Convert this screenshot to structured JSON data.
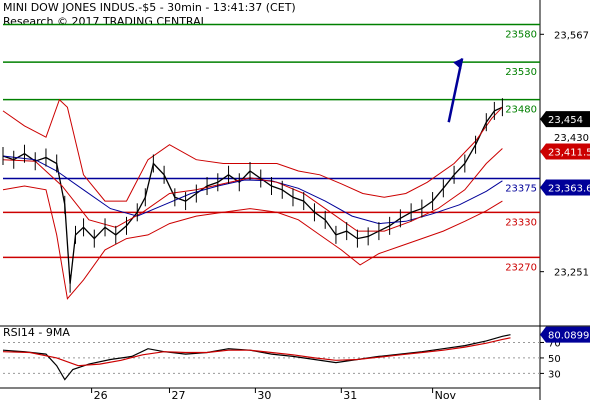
{
  "header": {
    "line1": "MINI DOW JONES INDUS.-$5 - 30min - 13:41:37 (CET)",
    "line2": "Research © 2017 TRADING CENTRAL"
  },
  "chart_data": {
    "type": "candlestick",
    "price_panel": {
      "y_range": [
        23180,
        23610
      ],
      "y_ticks": [
        {
          "value": 23567,
          "label": "23,567"
        },
        {
          "value": 23251,
          "label": "23,251"
        }
      ],
      "levels": [
        {
          "value": 23580,
          "label": "23580",
          "color": "#008000"
        },
        {
          "value": 23530,
          "label": "23530",
          "color": "#008000"
        },
        {
          "value": 23480,
          "label": "23480",
          "color": "#008000"
        },
        {
          "value": 23375,
          "label": "23375",
          "color": "#000099"
        },
        {
          "value": 23330,
          "label": "23330",
          "color": "#cc0000"
        },
        {
          "value": 23270,
          "label": "23270",
          "color": "#cc0000"
        }
      ],
      "price_tags": [
        {
          "value": 23454,
          "label": "23,454",
          "bg": "#000000",
          "fg": "#ffffff"
        },
        {
          "value": 23411,
          "label": "23,411.5",
          "bg": "#cc0000",
          "fg": "#ffffff"
        },
        {
          "value": 23363,
          "label": "23,363.6",
          "bg": "#000099",
          "fg": "#ffffff"
        }
      ],
      "hidden_tick": {
        "value": 23430,
        "label": "23,430"
      },
      "arrow": {
        "from": [
          23450,
          0.83
        ],
        "to": [
          23535,
          0.855
        ]
      },
      "series": [
        {
          "name": "price",
          "color": "#000000",
          "points": [
            [
              0,
              23405
            ],
            [
              0.02,
              23400
            ],
            [
              0.04,
              23408
            ],
            [
              0.06,
              23398
            ],
            [
              0.08,
              23403
            ],
            [
              0.1,
              23395
            ],
            [
              0.115,
              23340
            ],
            [
              0.125,
              23235
            ],
            [
              0.135,
              23300
            ],
            [
              0.15,
              23310
            ],
            [
              0.17,
              23295
            ],
            [
              0.19,
              23310
            ],
            [
              0.21,
              23300
            ],
            [
              0.23,
              23312
            ],
            [
              0.25,
              23330
            ],
            [
              0.265,
              23350
            ],
            [
              0.28,
              23395
            ],
            [
              0.3,
              23380
            ],
            [
              0.32,
              23350
            ],
            [
              0.34,
              23345
            ],
            [
              0.36,
              23355
            ],
            [
              0.38,
              23365
            ],
            [
              0.4,
              23370
            ],
            [
              0.42,
              23380
            ],
            [
              0.44,
              23370
            ],
            [
              0.46,
              23385
            ],
            [
              0.48,
              23375
            ],
            [
              0.5,
              23365
            ],
            [
              0.52,
              23360
            ],
            [
              0.54,
              23350
            ],
            [
              0.56,
              23345
            ],
            [
              0.58,
              23330
            ],
            [
              0.6,
              23320
            ],
            [
              0.62,
              23300
            ],
            [
              0.64,
              23305
            ],
            [
              0.66,
              23295
            ],
            [
              0.68,
              23298
            ],
            [
              0.7,
              23305
            ],
            [
              0.72,
              23312
            ],
            [
              0.74,
              23322
            ],
            [
              0.76,
              23330
            ],
            [
              0.78,
              23335
            ],
            [
              0.8,
              23345
            ],
            [
              0.82,
              23362
            ],
            [
              0.84,
              23380
            ],
            [
              0.86,
              23395
            ],
            [
              0.88,
              23420
            ],
            [
              0.9,
              23450
            ],
            [
              0.915,
              23465
            ],
            [
              0.93,
              23470
            ]
          ]
        },
        {
          "name": "ma-fast",
          "color": "#000099",
          "points": [
            [
              0,
              23405
            ],
            [
              0.06,
              23400
            ],
            [
              0.1,
              23385
            ],
            [
              0.15,
              23360
            ],
            [
              0.2,
              23335
            ],
            [
              0.25,
              23325
            ],
            [
              0.3,
              23340
            ],
            [
              0.35,
              23355
            ],
            [
              0.4,
              23365
            ],
            [
              0.45,
              23373
            ],
            [
              0.5,
              23372
            ],
            [
              0.55,
              23362
            ],
            [
              0.6,
              23345
            ],
            [
              0.65,
              23325
            ],
            [
              0.7,
              23315
            ],
            [
              0.75,
              23318
            ],
            [
              0.8,
              23328
            ],
            [
              0.85,
              23340
            ],
            [
              0.9,
              23358
            ],
            [
              0.93,
              23372
            ]
          ]
        },
        {
          "name": "ma-slow",
          "color": "#cc0000",
          "points": [
            [
              0,
              23400
            ],
            [
              0.06,
              23398
            ],
            [
              0.11,
              23365
            ],
            [
              0.16,
              23320
            ],
            [
              0.21,
              23310
            ],
            [
              0.26,
              23330
            ],
            [
              0.31,
              23355
            ],
            [
              0.36,
              23360
            ],
            [
              0.41,
              23368
            ],
            [
              0.46,
              23376
            ],
            [
              0.51,
              23370
            ],
            [
              0.56,
              23355
            ],
            [
              0.61,
              23330
            ],
            [
              0.66,
              23305
            ],
            [
              0.71,
              23305
            ],
            [
              0.76,
              23318
            ],
            [
              0.81,
              23335
            ],
            [
              0.86,
              23360
            ],
            [
              0.9,
              23395
            ],
            [
              0.93,
              23415
            ]
          ]
        },
        {
          "name": "bb-upper",
          "color": "#cc0000",
          "points": [
            [
              0,
              23465
            ],
            [
              0.04,
              23445
            ],
            [
              0.08,
              23430
            ],
            [
              0.105,
              23480
            ],
            [
              0.12,
              23470
            ],
            [
              0.15,
              23380
            ],
            [
              0.19,
              23345
            ],
            [
              0.23,
              23345
            ],
            [
              0.27,
              23400
            ],
            [
              0.31,
              23420
            ],
            [
              0.36,
              23400
            ],
            [
              0.41,
              23395
            ],
            [
              0.46,
              23395
            ],
            [
              0.51,
              23395
            ],
            [
              0.55,
              23385
            ],
            [
              0.59,
              23380
            ],
            [
              0.63,
              23368
            ],
            [
              0.67,
              23355
            ],
            [
              0.71,
              23350
            ],
            [
              0.75,
              23355
            ],
            [
              0.79,
              23370
            ],
            [
              0.84,
              23395
            ],
            [
              0.88,
              23425
            ],
            [
              0.91,
              23455
            ],
            [
              0.93,
              23470
            ]
          ]
        },
        {
          "name": "bb-lower",
          "color": "#cc0000",
          "points": [
            [
              0,
              23360
            ],
            [
              0.04,
              23365
            ],
            [
              0.08,
              23360
            ],
            [
              0.1,
              23300
            ],
            [
              0.12,
              23215
            ],
            [
              0.15,
              23240
            ],
            [
              0.19,
              23280
            ],
            [
              0.23,
              23295
            ],
            [
              0.27,
              23300
            ],
            [
              0.31,
              23315
            ],
            [
              0.36,
              23325
            ],
            [
              0.41,
              23330
            ],
            [
              0.46,
              23335
            ],
            [
              0.51,
              23330
            ],
            [
              0.55,
              23320
            ],
            [
              0.59,
              23300
            ],
            [
              0.63,
              23280
            ],
            [
              0.665,
              23260
            ],
            [
              0.7,
              23275
            ],
            [
              0.74,
              23285
            ],
            [
              0.78,
              23295
            ],
            [
              0.82,
              23305
            ],
            [
              0.86,
              23318
            ],
            [
              0.9,
              23332
            ],
            [
              0.93,
              23345
            ]
          ]
        }
      ]
    },
    "rsi_panel": {
      "title": "RSI14 - 9MA",
      "y_range": [
        15,
        90
      ],
      "y_ticks": [
        {
          "value": 70,
          "label": "70"
        },
        {
          "value": 50,
          "label": "50"
        },
        {
          "value": 30,
          "label": "30"
        }
      ],
      "value_tag": {
        "value": 80.0899,
        "label": "80.0899",
        "bg": "#000099",
        "fg": "#ffffff"
      },
      "series": [
        {
          "name": "rsi",
          "color": "#000000",
          "points": [
            [
              0,
              60
            ],
            [
              0.04,
              58
            ],
            [
              0.08,
              55
            ],
            [
              0.1,
              40
            ],
            [
              0.115,
              22
            ],
            [
              0.13,
              35
            ],
            [
              0.16,
              42
            ],
            [
              0.2,
              48
            ],
            [
              0.24,
              52
            ],
            [
              0.27,
              62
            ],
            [
              0.3,
              58
            ],
            [
              0.34,
              55
            ],
            [
              0.38,
              57
            ],
            [
              0.42,
              62
            ],
            [
              0.46,
              60
            ],
            [
              0.5,
              55
            ],
            [
              0.54,
              52
            ],
            [
              0.58,
              48
            ],
            [
              0.62,
              44
            ],
            [
              0.66,
              48
            ],
            [
              0.7,
              52
            ],
            [
              0.74,
              55
            ],
            [
              0.78,
              58
            ],
            [
              0.82,
              62
            ],
            [
              0.86,
              66
            ],
            [
              0.9,
              72
            ],
            [
              0.93,
              78
            ],
            [
              0.945,
              80
            ]
          ]
        },
        {
          "name": "rsi-ma",
          "color": "#cc0000",
          "points": [
            [
              0,
              58
            ],
            [
              0.05,
              57
            ],
            [
              0.1,
              50
            ],
            [
              0.14,
              40
            ],
            [
              0.18,
              42
            ],
            [
              0.22,
              47
            ],
            [
              0.26,
              54
            ],
            [
              0.3,
              58
            ],
            [
              0.34,
              57
            ],
            [
              0.38,
              57
            ],
            [
              0.42,
              60
            ],
            [
              0.46,
              60
            ],
            [
              0.5,
              57
            ],
            [
              0.54,
              54
            ],
            [
              0.58,
              50
            ],
            [
              0.62,
              47
            ],
            [
              0.66,
              48
            ],
            [
              0.7,
              51
            ],
            [
              0.74,
              54
            ],
            [
              0.78,
              57
            ],
            [
              0.82,
              60
            ],
            [
              0.86,
              64
            ],
            [
              0.9,
              69
            ],
            [
              0.93,
              74
            ],
            [
              0.945,
              76
            ]
          ]
        }
      ]
    },
    "x_axis": {
      "ticks": [
        {
          "pos": 0.165,
          "label": "26"
        },
        {
          "pos": 0.31,
          "label": "27"
        },
        {
          "pos": 0.47,
          "label": "30"
        },
        {
          "pos": 0.63,
          "label": "31"
        },
        {
          "pos": 0.8,
          "label": "Nov"
        }
      ]
    }
  }
}
